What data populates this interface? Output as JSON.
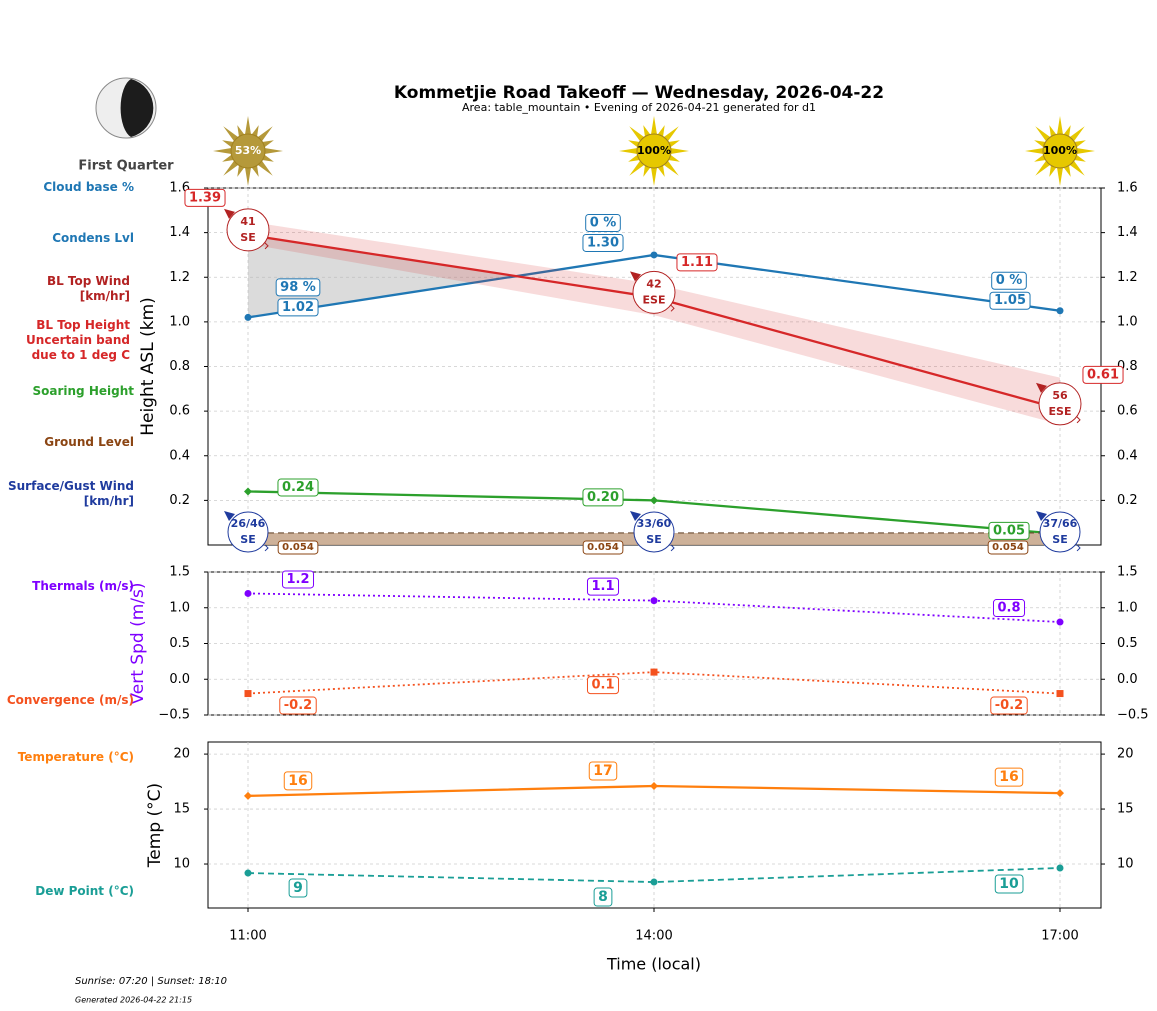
{
  "title": "Kommetjie Road Takeoff — Wednesday, 2026-04-22",
  "subtitle": "Area: table_mountain • Evening of 2026-04-21 generated for d1",
  "moon": {
    "phase": "First Quarter"
  },
  "sun": {
    "values": [
      53,
      100,
      100
    ],
    "value_labels": [
      "53%",
      "100%",
      "100%"
    ],
    "colors": [
      "#b5993a",
      "#e6c800",
      "#e6c800"
    ]
  },
  "footer": {
    "sun_times": "Sunrise: 07:20 | Sunset: 18:10",
    "generated": "Generated 2026-04-22 21:15"
  },
  "chart_data": [
    {
      "type": "line",
      "ylabel": "Height ASL (km)",
      "ylabel_color": "#000000",
      "ylim": [
        0,
        1.6
      ],
      "yticks": [
        0.2,
        0.4,
        0.6,
        0.8,
        {
          "value": 1,
          "label": "1.0"
        },
        1.2,
        1.4,
        1.6
      ],
      "grid": true,
      "series": [
        {
          "name": "Cloud base %",
          "type": "labels",
          "color": "#1f77b4",
          "values": [
            98,
            0,
            0
          ],
          "value_labels": [
            "98 %",
            "0 %",
            "0 %"
          ]
        },
        {
          "name": "Condens Lvl",
          "type": "line",
          "color": "#1f77b4",
          "linestyle": "solid",
          "marker": "circle",
          "values": [
            1.02,
            1.3,
            1.05
          ],
          "value_labels": [
            "1.02",
            "1.30",
            "1.05"
          ]
        },
        {
          "name": "BL Top Wind\n[km/hr]",
          "type": "wind",
          "color": "#b22222",
          "values": [
            41,
            42,
            56
          ],
          "directions": [
            "SE",
            "ESE",
            "ESE"
          ]
        },
        {
          "name": "BL Top Height\nUncertain band\ndue to 1 deg C",
          "type": "line",
          "color": "#d62728",
          "linestyle": "solid",
          "marker": "none",
          "values": [
            1.39,
            1.11,
            0.61
          ],
          "band_high": [
            1.45,
            1.17,
            0.75
          ],
          "band_low": [
            1.35,
            1.03,
            0.54
          ]
        },
        {
          "name": "Soaring Height",
          "type": "line",
          "color": "#2ca02c",
          "linestyle": "solid",
          "marker": "diamond",
          "values": [
            0.24,
            0.2,
            0.05
          ],
          "value_labels": [
            "0.24",
            "0.20",
            "0.05"
          ]
        },
        {
          "name": "Ground Level",
          "type": "area",
          "color": "#8b4513",
          "values": [
            0.054,
            0.054,
            0.054
          ]
        },
        {
          "name": "Surface/Gust Wind\n[km/hr]",
          "type": "wind",
          "color": "#1f3b9e",
          "values": [
            26,
            33,
            37
          ],
          "gust": [
            46,
            60,
            66
          ],
          "value_labels": [
            "26/46",
            "33/60",
            "37/66"
          ],
          "directions": [
            "SE",
            "SE",
            "SE"
          ]
        }
      ]
    },
    {
      "type": "line",
      "ylabel": "Vert Spd (m/s)",
      "ylabel_color": "#7f00ff",
      "ylim": [
        -0.5,
        1.5
      ],
      "yticks": [
        {
          "value": -0.5,
          "label": "−0.5"
        },
        {
          "value": 0,
          "label": "0.0"
        },
        0.5,
        {
          "value": 1,
          "label": "1.0"
        },
        1.5
      ],
      "grid": true,
      "series": [
        {
          "name": "Thermals (m/s)",
          "type": "line",
          "color": "#7f00ff",
          "linestyle": "dotted",
          "marker": "circle",
          "values": [
            1.2,
            1.1,
            0.8
          ]
        },
        {
          "name": "Convergence (m/s)",
          "type": "line",
          "color": "#f4511e",
          "linestyle": "dotted",
          "marker": "square",
          "values": [
            -0.2,
            0.1,
            -0.2
          ]
        }
      ]
    },
    {
      "type": "line",
      "ylabel": "Temp (°C)",
      "ylabel_color": "#000000",
      "xlabel": "Time (local)",
      "categories": [
        "11:00",
        "14:00",
        "17:00"
      ],
      "ylim": [
        6,
        21.1
      ],
      "yticks": [
        10,
        15,
        20
      ],
      "grid": true,
      "series": [
        {
          "name": "Temperature (°C)",
          "type": "line",
          "color": "#ff7f0e",
          "linestyle": "solid",
          "marker": "diamond",
          "values": [
            16.2,
            17.1,
            16.45
          ],
          "value_labels": [
            "16",
            "17",
            "16"
          ]
        },
        {
          "name": "Dew Point (°C)",
          "type": "line",
          "color": "#1a9e96",
          "linestyle": "dashed",
          "marker": "circle",
          "values": [
            9.18,
            8.36,
            9.64
          ],
          "value_labels": [
            "9",
            "8",
            "10"
          ]
        }
      ]
    }
  ]
}
